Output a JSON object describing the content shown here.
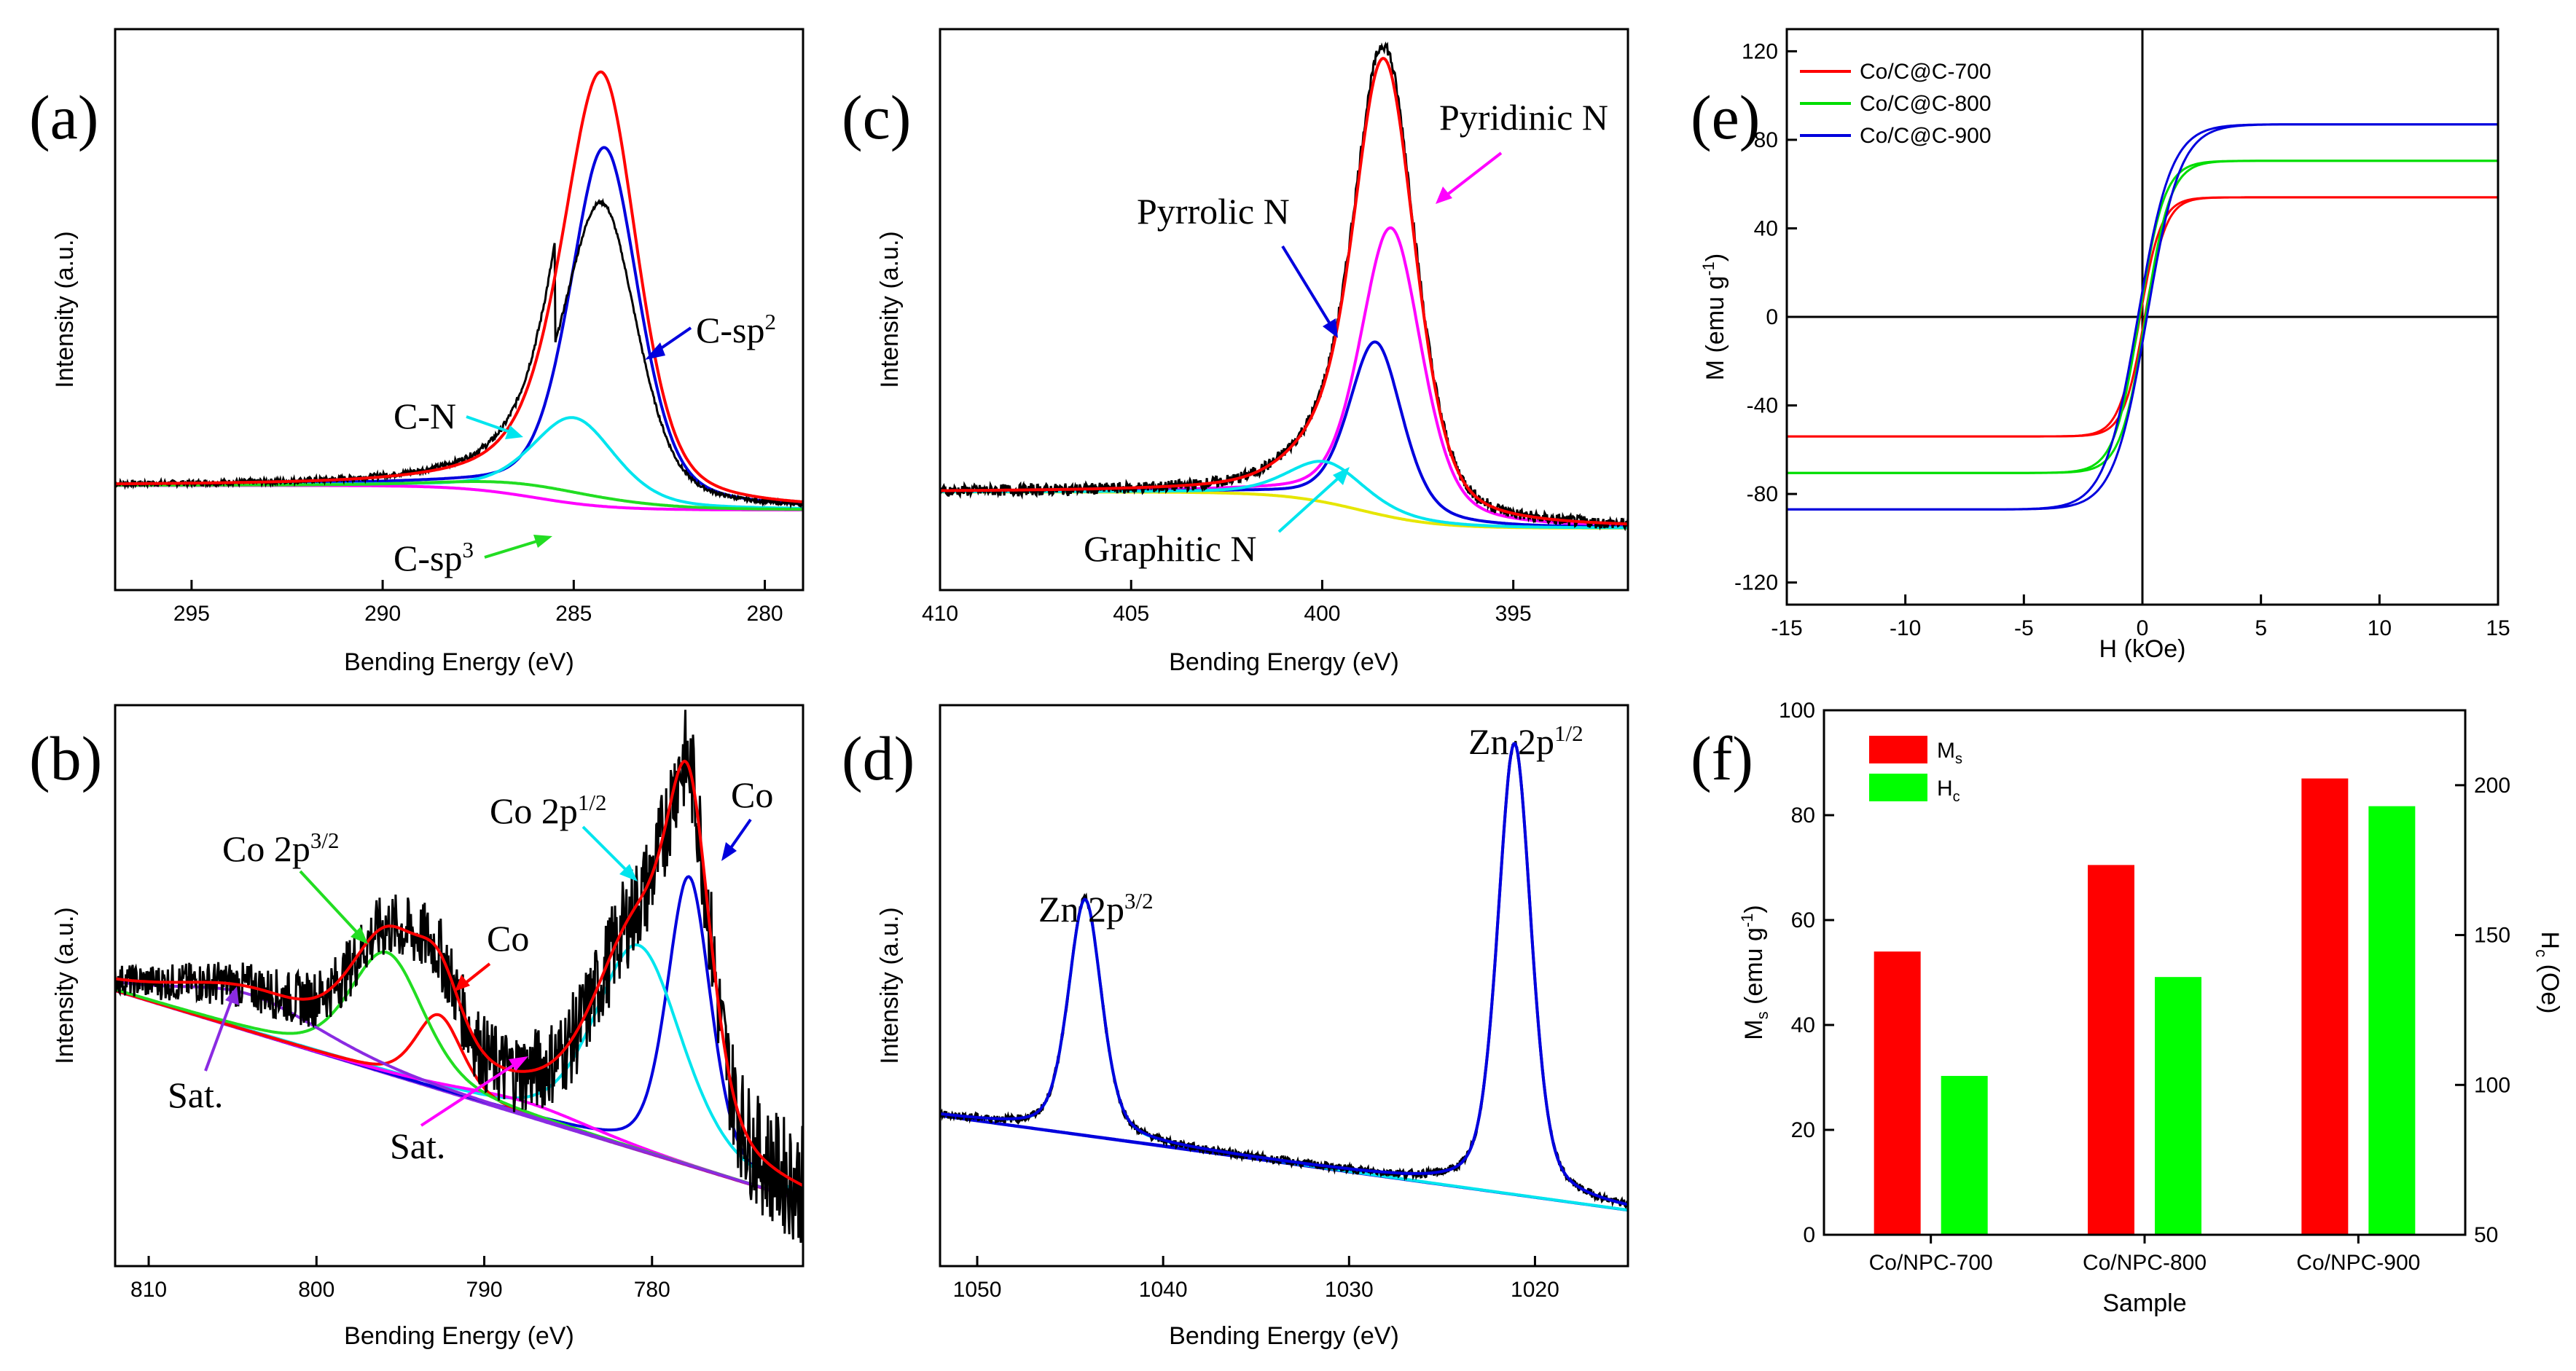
{
  "chart_data": [
    {
      "id": "a",
      "type": "line",
      "panel_label": "(a)",
      "xlabel": "Bending Energy (eV)",
      "ylabel": "Intensity (a.u.)",
      "xlim": [
        297,
        279
      ],
      "x_ticks": [
        295,
        290,
        285,
        280
      ],
      "y_ticks": false,
      "peaks": [
        {
          "name": "C-sp2",
          "label": "C-sp",
          "label_sup": "2",
          "center": 284.2,
          "height": 0.88,
          "width": 0.9,
          "color": "#0000dd"
        },
        {
          "name": "C-N",
          "label": "C-N",
          "center": 285.0,
          "height": 0.21,
          "width": 1.1,
          "color": "#00e5ee"
        },
        {
          "name": "C-sp3",
          "label": "C-sp",
          "label_sup": "3",
          "center": 285.8,
          "height": 0.03,
          "width": 2.0,
          "color": "#22dd22"
        }
      ],
      "baseline": {
        "high": 0.06,
        "low": 0.0,
        "step_center": 286.0,
        "color": "#ff00ff"
      },
      "series": [
        {
          "name": "raw data",
          "color": "#000000"
        },
        {
          "name": "fit envelope",
          "color": "#ff0000"
        }
      ]
    },
    {
      "id": "b",
      "type": "line",
      "panel_label": "(b)",
      "xlabel": "Bending Energy (eV)",
      "ylabel": "Intensity (a.u.)",
      "xlim": [
        812,
        771
      ],
      "x_ticks": [
        810,
        800,
        790,
        780
      ],
      "y_ticks": false,
      "peaks": [
        {
          "name": "Co",
          "label": "Co",
          "center": 777.8,
          "height": 0.62,
          "width": 1.3,
          "color": "#0000dd"
        },
        {
          "name": "Co 2p1/2",
          "label": "Co 2p",
          "label_sup": "1/2",
          "center": 780.8,
          "height": 0.44,
          "width": 2.6,
          "color": "#00e5ee"
        },
        {
          "name": "Sat.",
          "label": "Sat.",
          "center": 787.5,
          "height": 0.03,
          "width": 4.0,
          "color": "#ff00ff"
        },
        {
          "name": "Co",
          "label": "Co",
          "center": 792.7,
          "height": 0.16,
          "width": 1.4,
          "color": "#ff0000"
        },
        {
          "name": "Co 2p3/2",
          "label": "Co 2p",
          "label_sup": "3/2",
          "center": 795.8,
          "height": 0.26,
          "width": 2.2,
          "color": "#22dd22"
        },
        {
          "name": "Sat.",
          "label": "Sat.",
          "center": 804.0,
          "height": 0.08,
          "width": 4.5,
          "color": "#8a2be2"
        }
      ],
      "baseline": {
        "start": 0.5,
        "end": 0.05,
        "color": "#8a2be2"
      },
      "series": [
        {
          "name": "raw data",
          "color": "#000000"
        },
        {
          "name": "fit envelope",
          "color": "#ff0000"
        }
      ]
    },
    {
      "id": "c",
      "type": "line",
      "panel_label": "(c)",
      "xlabel": "Bending Energy (eV)",
      "ylabel": "Intensity (a.u.)",
      "xlim": [
        410,
        392
      ],
      "x_ticks": [
        410,
        405,
        400,
        395
      ],
      "y_ticks": false,
      "peaks": [
        {
          "name": "Pyridinic N",
          "label": "Pyridinic N",
          "center": 398.2,
          "height": 0.64,
          "width": 0.8,
          "color": "#ff00ff"
        },
        {
          "name": "Pyrrolic N",
          "label": "Pyrrolic N",
          "center": 398.6,
          "height": 0.38,
          "width": 0.7,
          "color": "#0000dd"
        },
        {
          "name": "Graphitic N",
          "label": "Graphitic N",
          "center": 399.9,
          "height": 0.09,
          "width": 1.0,
          "color": "#00e5ee"
        }
      ],
      "baseline": {
        "high": 0.08,
        "low": 0.0,
        "step_center": 399.0,
        "color": "#e6e600"
      },
      "series": [
        {
          "name": "raw data",
          "color": "#000000"
        },
        {
          "name": "fit envelope",
          "color": "#ff0000"
        }
      ]
    },
    {
      "id": "d",
      "type": "line",
      "panel_label": "(d)",
      "xlabel": "Bending Energy (eV)",
      "ylabel": "Intensity (a.u.)",
      "xlim": [
        1052,
        1015
      ],
      "x_ticks": [
        1050,
        1040,
        1030,
        1020
      ],
      "y_ticks": false,
      "peaks": [
        {
          "name": "Zn 2p3/2",
          "label": "Zn 2p",
          "label_sup": "3/2",
          "center": 1044.2,
          "height": 0.45,
          "width": 0.9,
          "color": "#00e5ee"
        },
        {
          "name": "Zn 2p1/2",
          "label": "Zn 2p",
          "label_sup": "1/2",
          "center": 1021.1,
          "height": 0.86,
          "width": 0.9,
          "color": "#0000dd"
        }
      ],
      "baseline": {
        "start": 0.22,
        "end": 0.04,
        "color": "#0000dd"
      },
      "series": [
        {
          "name": "raw data",
          "color": "#000000"
        },
        {
          "name": "fit envelope",
          "color": "#0000dd"
        }
      ]
    },
    {
      "id": "e",
      "type": "line",
      "panel_label": "(e)",
      "xlabel": "H (kOe)",
      "ylabel": "M (emu g",
      "ylabel_sup": "-1",
      "ylabel_end": ")",
      "xlim": [
        -15,
        15
      ],
      "ylim": [
        -130,
        130
      ],
      "x_ticks": [
        -15,
        -10,
        -5,
        0,
        5,
        10,
        15
      ],
      "y_ticks": [
        120,
        80,
        40,
        0,
        -40,
        -80,
        -120
      ],
      "legend_position": "top-left",
      "series": [
        {
          "name": "Co/C@C-700",
          "ms": 54,
          "hc_koe": 0.1,
          "scale": 0.9,
          "color": "#ff0000"
        },
        {
          "name": "Co/C@C-800",
          "ms": 70.5,
          "hc_koe": 0.13,
          "scale": 1.05,
          "color": "#00dd00"
        },
        {
          "name": "Co/C@C-900",
          "ms": 87,
          "hc_koe": 0.19,
          "scale": 1.4,
          "color": "#0000dd"
        }
      ]
    },
    {
      "id": "f",
      "type": "bar",
      "panel_label": "(f)",
      "xlabel": "Sample",
      "ylabel": "M",
      "ylabel_sub": "s",
      "ylabel_end": " (emu g",
      "ylabel_sup": "-1",
      "ylabel_close": ")",
      "y2label": "H",
      "y2label_sub": "c",
      "y2label_end": " (Oe)",
      "categories": [
        "Co/NPC-700",
        "Co/NPC-800",
        "Co/NPC-900"
      ],
      "ylim": [
        0,
        100
      ],
      "y_ticks": [
        100,
        80,
        60,
        40,
        20,
        0
      ],
      "y2lim": [
        50,
        225
      ],
      "y2_ticks": [
        200,
        150,
        100,
        50
      ],
      "legend_position": "top-left",
      "series": [
        {
          "name": "Ms",
          "legend": "M",
          "legend_sub": "s",
          "axis": "left",
          "values": [
            54,
            70.5,
            87
          ],
          "color": "#ff0000"
        },
        {
          "name": "Hc",
          "legend": "H",
          "legend_sub": "c",
          "axis": "right",
          "values": [
            103,
            136,
            193
          ],
          "color": "#00ff00"
        }
      ]
    }
  ]
}
